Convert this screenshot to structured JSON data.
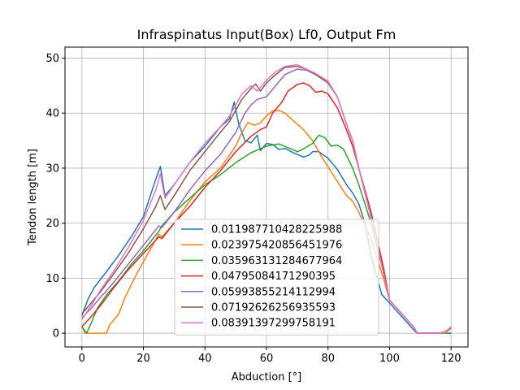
{
  "chart_data": {
    "type": "line",
    "title": "Infraspinatus Input(Box) Lf0, Output Fm",
    "xlabel": "Abduction [°]",
    "ylabel": "Tendon length [m]",
    "xlim": [
      -5.5,
      125.5
    ],
    "ylim": [
      -2.5,
      52
    ],
    "xticks": [
      0,
      20,
      40,
      60,
      80,
      100,
      120
    ],
    "yticks": [
      0,
      10,
      20,
      30,
      40,
      50
    ],
    "grid": true,
    "legend_position": "lower center",
    "series": [
      {
        "name": "0.011987710428225988",
        "color": "#1f77b4",
        "points": [
          [
            0,
            3.2
          ],
          [
            2,
            6.2
          ],
          [
            4,
            8.3
          ],
          [
            8,
            11.2
          ],
          [
            12,
            14.2
          ],
          [
            16,
            17.5
          ],
          [
            20,
            21.2
          ],
          [
            24,
            28.0
          ],
          [
            25.5,
            30.3
          ],
          [
            27,
            25.0
          ],
          [
            30,
            27.0
          ],
          [
            35,
            31.0
          ],
          [
            40,
            34.0
          ],
          [
            45,
            37.5
          ],
          [
            48,
            39.0
          ],
          [
            49.5,
            42.0
          ],
          [
            51,
            38.0
          ],
          [
            53,
            35.0
          ],
          [
            55,
            34.6
          ],
          [
            57,
            36.0
          ],
          [
            58,
            33.2
          ],
          [
            60,
            34.5
          ],
          [
            62,
            34.3
          ],
          [
            64,
            33.4
          ],
          [
            66,
            33.6
          ],
          [
            68,
            33.0
          ],
          [
            70,
            32.5
          ],
          [
            72,
            32.0
          ],
          [
            74,
            32.4
          ],
          [
            75,
            33.0
          ],
          [
            77,
            33.0
          ],
          [
            80,
            31.8
          ],
          [
            83,
            29.8
          ],
          [
            86,
            27.0
          ],
          [
            88,
            25.5
          ],
          [
            90,
            23.5
          ],
          [
            92,
            20.0
          ],
          [
            94,
            14.0
          ],
          [
            96,
            10.0
          ],
          [
            97.5,
            7.0
          ],
          [
            100,
            5.5
          ],
          [
            104,
            3.0
          ],
          [
            108,
            0.5
          ],
          [
            109,
            0.0
          ],
          [
            120,
            0.0
          ]
        ]
      },
      {
        "name": "0.023975420856451976",
        "color": "#ff7f0e",
        "points": [
          [
            0,
            1.3
          ],
          [
            1,
            0.0
          ],
          [
            8,
            0.0
          ],
          [
            9,
            1.5
          ],
          [
            12,
            3.5
          ],
          [
            14,
            6.5
          ],
          [
            18,
            11.0
          ],
          [
            22,
            15.0
          ],
          [
            25,
            18.0
          ],
          [
            26,
            17.5
          ],
          [
            30,
            20.0
          ],
          [
            35,
            24.0
          ],
          [
            40,
            27.5
          ],
          [
            45,
            30.0
          ],
          [
            50,
            34.0
          ],
          [
            52,
            36.5
          ],
          [
            54,
            38.3
          ],
          [
            56,
            37.8
          ],
          [
            58,
            38.2
          ],
          [
            60,
            39.5
          ],
          [
            62,
            40.4
          ],
          [
            64,
            40.5
          ],
          [
            66,
            40.0
          ],
          [
            68,
            39.0
          ],
          [
            72,
            37.0
          ],
          [
            75,
            35.0
          ],
          [
            78,
            32.0
          ],
          [
            82,
            28.5
          ],
          [
            86,
            25.0
          ],
          [
            88,
            24.0
          ],
          [
            90,
            22.0
          ],
          [
            94,
            17.0
          ],
          [
            98,
            10.0
          ],
          [
            100,
            6.0
          ],
          [
            104,
            3.5
          ],
          [
            108,
            1.0
          ],
          [
            109,
            0.0
          ],
          [
            116,
            0.0
          ],
          [
            118,
            0.3
          ],
          [
            120,
            1.0
          ]
        ]
      },
      {
        "name": "0.035963131284677964",
        "color": "#2ca02c",
        "points": [
          [
            0,
            1.2
          ],
          [
            1.5,
            0.0
          ],
          [
            3,
            1.8
          ],
          [
            5,
            4.5
          ],
          [
            8,
            7.0
          ],
          [
            12,
            9.5
          ],
          [
            16,
            12.5
          ],
          [
            20,
            15.0
          ],
          [
            25,
            18.5
          ],
          [
            26,
            19.5
          ],
          [
            30,
            22.0
          ],
          [
            35,
            24.5
          ],
          [
            40,
            27.0
          ],
          [
            45,
            28.8
          ],
          [
            50,
            31.0
          ],
          [
            55,
            32.8
          ],
          [
            60,
            34.0
          ],
          [
            64,
            34.4
          ],
          [
            68,
            33.5
          ],
          [
            70,
            33.0
          ],
          [
            72,
            33.5
          ],
          [
            75,
            34.5
          ],
          [
            77,
            36.0
          ],
          [
            79,
            35.5
          ],
          [
            81,
            34.0
          ],
          [
            83,
            34.2
          ],
          [
            85,
            33.5
          ],
          [
            88,
            30.0
          ],
          [
            90,
            27.0
          ],
          [
            94,
            20.0
          ],
          [
            98,
            11.0
          ],
          [
            100,
            6.0
          ],
          [
            104,
            3.5
          ],
          [
            108,
            1.0
          ],
          [
            109,
            0.0
          ],
          [
            120,
            0.0
          ]
        ]
      },
      {
        "name": "0.04795084171290395",
        "color": "#d62728",
        "points": [
          [
            0,
            1.2
          ],
          [
            3,
            3.0
          ],
          [
            6,
            5.0
          ],
          [
            10,
            8.0
          ],
          [
            15,
            11.5
          ],
          [
            20,
            14.5
          ],
          [
            25,
            17.5
          ],
          [
            26,
            17.2
          ],
          [
            30,
            20.0
          ],
          [
            35,
            23.0
          ],
          [
            40,
            26.5
          ],
          [
            45,
            29.5
          ],
          [
            50,
            33.0
          ],
          [
            55,
            35.8
          ],
          [
            58,
            37.0
          ],
          [
            60,
            37.5
          ],
          [
            62,
            40.0
          ],
          [
            65,
            42.0
          ],
          [
            67,
            44.0
          ],
          [
            70,
            45.2
          ],
          [
            72,
            45.5
          ],
          [
            74,
            45.0
          ],
          [
            76,
            43.8
          ],
          [
            78,
            44.0
          ],
          [
            80,
            43.5
          ],
          [
            83,
            41.0
          ],
          [
            86,
            37.0
          ],
          [
            88,
            34.0
          ],
          [
            90,
            30.0
          ],
          [
            94,
            22.0
          ],
          [
            98,
            12.0
          ],
          [
            100,
            6.0
          ],
          [
            104,
            3.5
          ],
          [
            108,
            1.0
          ],
          [
            109,
            0.0
          ],
          [
            118,
            0.0
          ],
          [
            120,
            1.0
          ]
        ]
      },
      {
        "name": "0.05993855214112994",
        "color": "#9467bd",
        "points": [
          [
            0,
            2.8
          ],
          [
            3,
            4.5
          ],
          [
            6,
            6.5
          ],
          [
            10,
            9.0
          ],
          [
            15,
            12.5
          ],
          [
            20,
            16.0
          ],
          [
            25,
            19.5
          ],
          [
            26,
            19.2
          ],
          [
            30,
            22.0
          ],
          [
            35,
            26.0
          ],
          [
            40,
            29.5
          ],
          [
            45,
            32.5
          ],
          [
            50,
            36.5
          ],
          [
            53,
            40.0
          ],
          [
            55,
            41.5
          ],
          [
            57,
            42.5
          ],
          [
            60,
            43.0
          ],
          [
            63,
            45.0
          ],
          [
            66,
            47.0
          ],
          [
            70,
            48.0
          ],
          [
            73,
            47.8
          ],
          [
            76,
            47.0
          ],
          [
            78,
            46.5
          ],
          [
            80,
            45.5
          ],
          [
            83,
            43.0
          ],
          [
            86,
            38.0
          ],
          [
            88,
            35.0
          ],
          [
            90,
            30.0
          ],
          [
            94,
            21.0
          ],
          [
            98,
            11.0
          ],
          [
            100,
            6.0
          ],
          [
            104,
            3.5
          ],
          [
            108,
            1.0
          ],
          [
            109,
            0.0
          ],
          [
            118,
            0.0
          ],
          [
            120,
            1.0
          ]
        ]
      },
      {
        "name": "0.07192626256935593",
        "color": "#8c564b",
        "points": [
          [
            0,
            3.5
          ],
          [
            3,
            5.5
          ],
          [
            6,
            7.5
          ],
          [
            10,
            10.5
          ],
          [
            15,
            14.5
          ],
          [
            20,
            19.0
          ],
          [
            24,
            23.0
          ],
          [
            25.5,
            25.0
          ],
          [
            27,
            22.5
          ],
          [
            30,
            25.0
          ],
          [
            35,
            29.5
          ],
          [
            40,
            33.0
          ],
          [
            45,
            36.5
          ],
          [
            48,
            38.5
          ],
          [
            50,
            40.5
          ],
          [
            52,
            42.5
          ],
          [
            55,
            44.5
          ],
          [
            56.5,
            45.3
          ],
          [
            58,
            44.0
          ],
          [
            60,
            45.5
          ],
          [
            63,
            47.0
          ],
          [
            66,
            48.3
          ],
          [
            70,
            48.5
          ],
          [
            73,
            48.0
          ],
          [
            76,
            47.0
          ],
          [
            80,
            45.5
          ],
          [
            83,
            43.0
          ],
          [
            86,
            38.0
          ],
          [
            88,
            35.0
          ],
          [
            90,
            30.0
          ],
          [
            94,
            21.0
          ],
          [
            98,
            11.0
          ],
          [
            100,
            6.0
          ],
          [
            104,
            3.5
          ],
          [
            108,
            1.0
          ],
          [
            109,
            0.0
          ],
          [
            118,
            0.0
          ],
          [
            120,
            1.0
          ]
        ]
      },
      {
        "name": "0.08391397299758191",
        "color": "#e377c2",
        "points": [
          [
            0,
            2.5
          ],
          [
            3,
            5.0
          ],
          [
            6,
            7.8
          ],
          [
            10,
            11.0
          ],
          [
            15,
            15.5
          ],
          [
            20,
            20.5
          ],
          [
            24,
            26.0
          ],
          [
            25.5,
            29.0
          ],
          [
            27,
            24.5
          ],
          [
            30,
            27.0
          ],
          [
            35,
            31.0
          ],
          [
            40,
            34.5
          ],
          [
            45,
            37.5
          ],
          [
            48,
            39.5
          ],
          [
            50,
            41.5
          ],
          [
            52,
            43.5
          ],
          [
            55,
            45.0
          ],
          [
            57,
            44.0
          ],
          [
            60,
            46.0
          ],
          [
            63,
            47.5
          ],
          [
            66,
            48.5
          ],
          [
            70,
            48.8
          ],
          [
            73,
            48.0
          ],
          [
            76,
            47.2
          ],
          [
            80,
            45.8
          ],
          [
            83,
            43.0
          ],
          [
            86,
            38.0
          ],
          [
            88,
            35.0
          ],
          [
            90,
            30.0
          ],
          [
            94,
            21.0
          ],
          [
            98,
            11.0
          ],
          [
            100,
            6.0
          ],
          [
            104,
            3.5
          ],
          [
            108,
            1.0
          ],
          [
            109,
            0.0
          ],
          [
            118,
            0.0
          ],
          [
            120,
            1.2
          ]
        ]
      }
    ]
  }
}
